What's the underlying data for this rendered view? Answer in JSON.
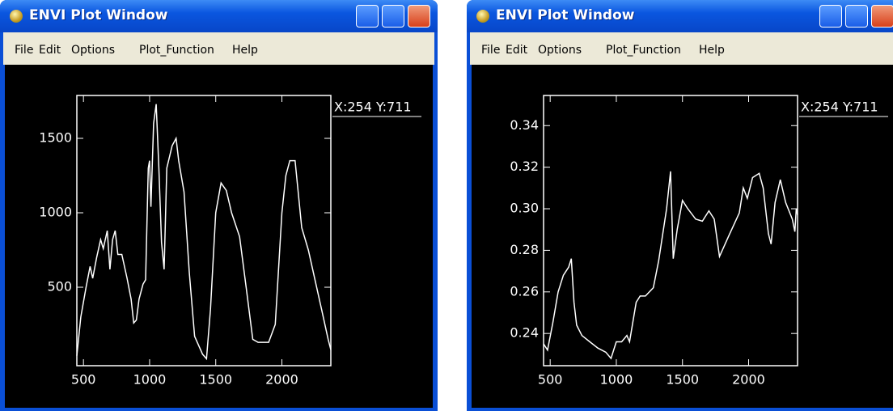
{
  "windows": [
    {
      "title": "ENVI Plot Window",
      "menu": [
        "File",
        "Edit",
        "Options",
        "Plot_Function",
        "Help"
      ],
      "cursor": "X:254 Y:711"
    },
    {
      "title": "ENVI Plot Window",
      "menu": [
        "File",
        "Edit",
        "Options",
        "Plot_Function",
        "Help"
      ],
      "cursor": "X:254 Y:711"
    }
  ],
  "chart_data": [
    {
      "type": "line",
      "color": "#ffffff",
      "x": [
        450,
        480,
        520,
        550,
        570,
        600,
        630,
        650,
        680,
        700,
        720,
        740,
        760,
        790,
        830,
        860,
        880,
        900,
        920,
        950,
        970,
        990,
        1000,
        1010,
        1030,
        1050,
        1070,
        1090,
        1110,
        1130,
        1170,
        1200,
        1220,
        1260,
        1300,
        1340,
        1400,
        1430,
        1460,
        1500,
        1540,
        1580,
        1620,
        1680,
        1730,
        1780,
        1820,
        1900,
        1950,
        2000,
        2030,
        2060,
        2100,
        2150,
        2200,
        2250,
        2300,
        2350,
        2370
      ],
      "values": [
        40,
        300,
        500,
        640,
        560,
        700,
        820,
        760,
        880,
        620,
        820,
        880,
        720,
        720,
        560,
        420,
        260,
        280,
        420,
        520,
        550,
        1300,
        1350,
        1040,
        1600,
        1730,
        1300,
        800,
        620,
        1300,
        1450,
        1500,
        1350,
        1140,
        600,
        170,
        50,
        20,
        350,
        1000,
        1200,
        1150,
        1000,
        840,
        500,
        150,
        130,
        130,
        250,
        1000,
        1250,
        1350,
        1350,
        900,
        750,
        550,
        350,
        150,
        80
      ],
      "xlim": [
        450,
        2370
      ],
      "ylim": [
        -27,
        1788
      ],
      "xticks": [
        500,
        1000,
        1500,
        2000
      ],
      "yticks": [
        500,
        1000,
        1500
      ]
    },
    {
      "type": "line",
      "color": "#ffffff",
      "x": [
        450,
        480,
        520,
        560,
        600,
        640,
        660,
        680,
        700,
        740,
        800,
        860,
        920,
        960,
        1000,
        1040,
        1080,
        1100,
        1150,
        1180,
        1220,
        1280,
        1320,
        1380,
        1410,
        1430,
        1460,
        1500,
        1540,
        1600,
        1650,
        1700,
        1740,
        1780,
        1850,
        1930,
        1960,
        1990,
        2030,
        2080,
        2110,
        2150,
        2170,
        2200,
        2240,
        2280,
        2330,
        2350,
        2360,
        2370
      ],
      "values": [
        0.235,
        0.232,
        0.245,
        0.26,
        0.268,
        0.272,
        0.276,
        0.255,
        0.244,
        0.239,
        0.236,
        0.233,
        0.231,
        0.228,
        0.236,
        0.236,
        0.239,
        0.236,
        0.255,
        0.258,
        0.258,
        0.262,
        0.275,
        0.3,
        0.318,
        0.276,
        0.29,
        0.304,
        0.3,
        0.295,
        0.294,
        0.299,
        0.295,
        0.277,
        0.287,
        0.298,
        0.31,
        0.305,
        0.315,
        0.317,
        0.31,
        0.288,
        0.283,
        0.303,
        0.314,
        0.303,
        0.295,
        0.289,
        0.3,
        0.297
      ],
      "xlim": [
        450,
        2370
      ],
      "ylim": [
        0.2245,
        0.3545
      ],
      "xticks": [
        500,
        1000,
        1500,
        2000
      ],
      "yticks": [
        {
          "value": 0.24,
          "label": "0.24"
        },
        {
          "value": 0.26,
          "label": "0.26"
        },
        {
          "value": 0.28,
          "label": "0.28"
        },
        {
          "value": 0.3,
          "label": "0.30"
        },
        {
          "value": 0.32,
          "label": "0.32"
        },
        {
          "value": 0.34,
          "label": "0.34"
        }
      ]
    }
  ]
}
